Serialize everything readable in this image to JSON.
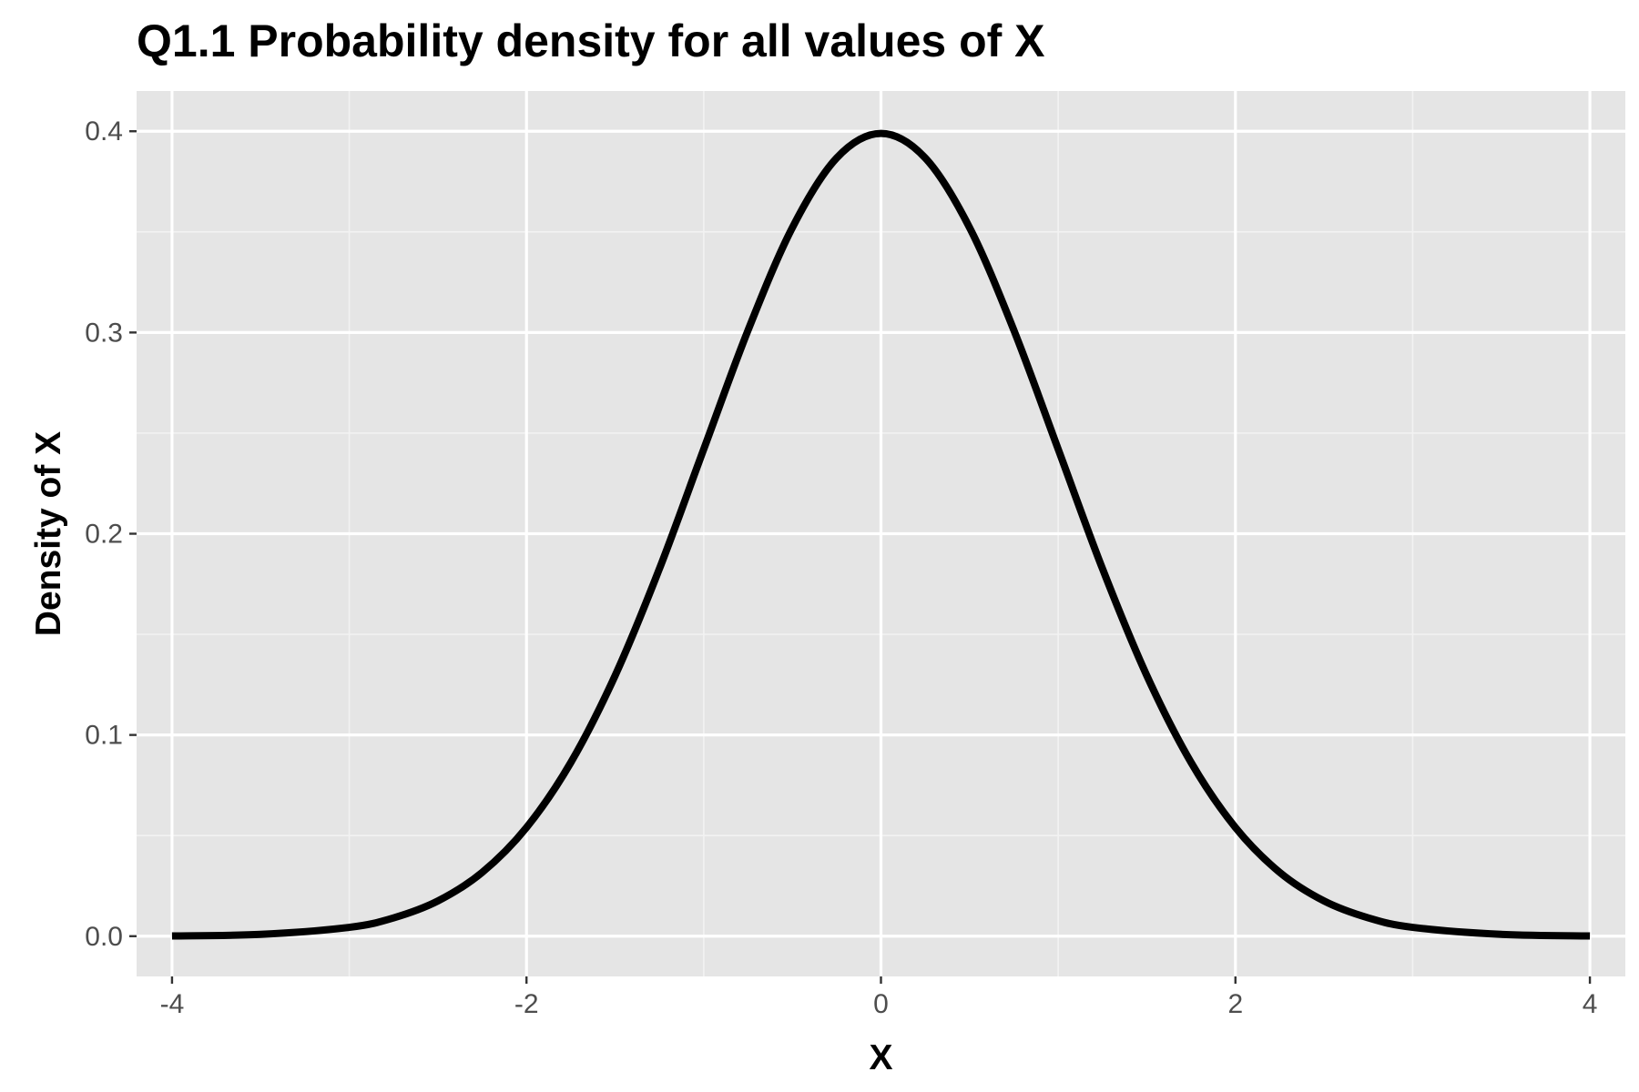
{
  "chart_data": {
    "type": "line",
    "title": "Q1.1 Probability density for all values of X",
    "xlabel": "X",
    "ylabel": "Density of X",
    "xlim": [
      -4.2,
      4.2
    ],
    "ylim": [
      -0.02,
      0.42
    ],
    "x_ticks": [
      -4,
      -2,
      0,
      2,
      4
    ],
    "x_tick_labels": [
      "-4",
      "-2",
      "0",
      "2",
      "4"
    ],
    "y_ticks": [
      0.0,
      0.1,
      0.2,
      0.3,
      0.4
    ],
    "y_tick_labels": [
      "0.0",
      "0.1",
      "0.2",
      "0.3",
      "0.4"
    ],
    "grid": true,
    "legend": "none",
    "line_color": "#000000",
    "panel_color": "#e5e5e5",
    "series": [
      {
        "x": [
          -4.0,
          -3.5,
          -3.0,
          -2.75,
          -2.5,
          -2.25,
          -2.0,
          -1.75,
          -1.5,
          -1.25,
          -1.0,
          -0.75,
          -0.5,
          -0.25,
          0.0,
          0.25,
          0.5,
          0.75,
          1.0,
          1.25,
          1.5,
          1.75,
          2.0,
          2.25,
          2.5,
          2.75,
          3.0,
          3.5,
          4.0
        ],
        "y": [
          0.0001,
          0.0009,
          0.0044,
          0.0091,
          0.0175,
          0.0317,
          0.054,
          0.0863,
          0.1295,
          0.1826,
          0.242,
          0.3011,
          0.3521,
          0.3867,
          0.3989,
          0.3867,
          0.3521,
          0.3011,
          0.242,
          0.1826,
          0.1295,
          0.0863,
          0.054,
          0.0317,
          0.0175,
          0.0091,
          0.0044,
          0.0009,
          0.0001
        ]
      }
    ]
  }
}
